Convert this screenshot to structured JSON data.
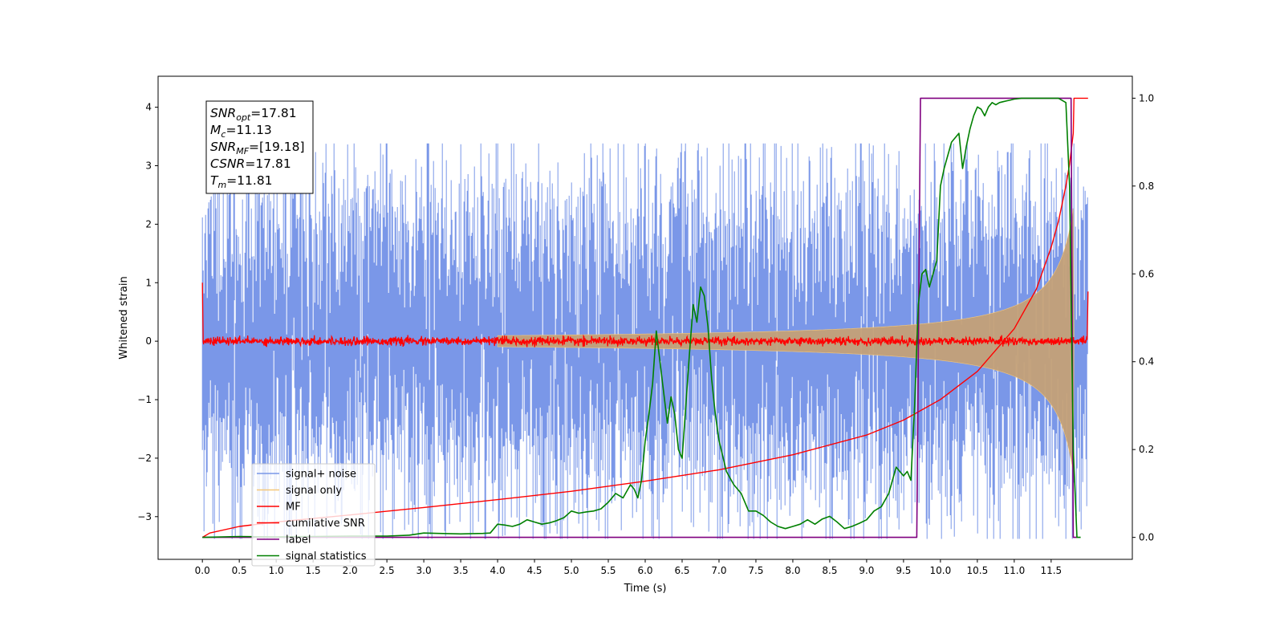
{
  "chart_data": {
    "type": "line",
    "xlabel": "Time (s)",
    "ylabel": "Whitened strain",
    "xlim": [
      -0.6,
      12.6
    ],
    "ylim": [
      -3.73,
      4.53
    ],
    "y2lim": [
      -0.05,
      1.05
    ],
    "x_ticks": [
      "0.0",
      "0.5",
      "1.0",
      "1.5",
      "2.0",
      "2.5",
      "3.0",
      "3.5",
      "4.0",
      "4.5",
      "5.0",
      "5.5",
      "6.0",
      "6.5",
      "7.0",
      "7.5",
      "8.0",
      "8.5",
      "9.0",
      "9.5",
      "10.0",
      "10.5",
      "11.0",
      "11.5"
    ],
    "y_ticks": [
      "−3",
      "−2",
      "−1",
      "0",
      "1",
      "2",
      "3",
      "4"
    ],
    "y2_ticks": [
      "0.0",
      "0.2",
      "0.4",
      "0.6",
      "0.8",
      "1.0"
    ],
    "legend_location": "lower-left",
    "annotation": {
      "snr_opt": {
        "base": "SNR",
        "sub": "opt",
        "value": "=17.81"
      },
      "mc": {
        "base": "M",
        "sub": "c",
        "value": "=11.13"
      },
      "snr_mf": {
        "base": "SNR",
        "sub": "MF",
        "value": "=[19.18]"
      },
      "csnr": {
        "base": "CSNR",
        "sub": "",
        "value": "=17.81"
      },
      "tm": {
        "base": "T",
        "sub": "m",
        "value": "=11.81"
      }
    },
    "series": [
      {
        "name": "signal+ noise",
        "color": "#7a97e8",
        "axis": "left",
        "kind": "noise",
        "t_start": 0.0,
        "t_end": 12.0,
        "noise_sigma": 0.8,
        "peak_abs": 3.38
      },
      {
        "name": "signal only",
        "color": "#f5c87a",
        "axis": "left",
        "kind": "chirp",
        "t_start": 0.0,
        "t_end": 11.81,
        "envelope_at_end": 2.5,
        "fill_color": "#c4a077"
      },
      {
        "name": "MF",
        "color": "#ff0000",
        "axis": "left",
        "kind": "mf",
        "t_start": 0.0,
        "t_end": 12.0,
        "start_value": 1.0,
        "noise_sigma": 0.035,
        "end_value": 0.85
      },
      {
        "name": "cumilative SNR",
        "color": "#ff0000",
        "axis": "right",
        "x": [
          0.0,
          0.1,
          0.5,
          1.0,
          2.0,
          3.0,
          4.0,
          5.0,
          6.0,
          7.0,
          8.0,
          9.0,
          9.5,
          10.0,
          10.5,
          11.0,
          11.3,
          11.5,
          11.6,
          11.7,
          11.75,
          11.8,
          11.81,
          11.85,
          12.0
        ],
        "y": [
          0.0,
          0.01,
          0.025,
          0.035,
          0.051,
          0.068,
          0.086,
          0.105,
          0.128,
          0.154,
          0.188,
          0.233,
          0.267,
          0.314,
          0.378,
          0.475,
          0.565,
          0.66,
          0.72,
          0.8,
          0.85,
          0.92,
          1.0,
          1.0,
          1.0
        ]
      },
      {
        "name": "label",
        "color": "#800080",
        "axis": "right",
        "x": [
          0.0,
          9.68,
          9.73,
          11.77,
          11.8,
          11.85
        ],
        "y": [
          0.0,
          0.0,
          1.0,
          1.0,
          0.0,
          0.0
        ]
      },
      {
        "name": "signal statistics",
        "color": "#008000",
        "axis": "right",
        "x": [
          0.0,
          0.5,
          1.0,
          1.5,
          2.0,
          2.5,
          2.8,
          3.0,
          3.2,
          3.5,
          3.8,
          3.9,
          4.0,
          4.1,
          4.2,
          4.3,
          4.4,
          4.5,
          4.6,
          4.7,
          4.8,
          4.9,
          5.0,
          5.1,
          5.2,
          5.3,
          5.4,
          5.5,
          5.6,
          5.7,
          5.8,
          5.85,
          5.9,
          5.95,
          6.0,
          6.05,
          6.1,
          6.15,
          6.2,
          6.25,
          6.3,
          6.35,
          6.4,
          6.45,
          6.5,
          6.55,
          6.6,
          6.65,
          6.7,
          6.75,
          6.8,
          6.85,
          6.9,
          6.95,
          7.0,
          7.1,
          7.2,
          7.3,
          7.4,
          7.5,
          7.6,
          7.7,
          7.8,
          7.9,
          8.0,
          8.1,
          8.2,
          8.3,
          8.4,
          8.5,
          8.6,
          8.7,
          8.8,
          8.9,
          9.0,
          9.1,
          9.2,
          9.3,
          9.4,
          9.5,
          9.55,
          9.6,
          9.65,
          9.7,
          9.75,
          9.8,
          9.85,
          9.9,
          9.95,
          10.0,
          10.05,
          10.1,
          10.15,
          10.2,
          10.25,
          10.3,
          10.35,
          10.4,
          10.45,
          10.5,
          10.55,
          10.6,
          10.65,
          10.7,
          10.75,
          10.8,
          10.85,
          10.9,
          10.95,
          11.0,
          11.1,
          11.2,
          11.3,
          11.4,
          11.5,
          11.6,
          11.7,
          11.75,
          11.8,
          11.85,
          11.9
        ],
        "y": [
          0.0,
          0.002,
          0.001,
          0.002,
          0.003,
          0.003,
          0.005,
          0.01,
          0.009,
          0.008,
          0.009,
          0.01,
          0.03,
          0.028,
          0.025,
          0.03,
          0.04,
          0.035,
          0.03,
          0.033,
          0.038,
          0.045,
          0.06,
          0.055,
          0.058,
          0.06,
          0.065,
          0.08,
          0.1,
          0.09,
          0.12,
          0.11,
          0.09,
          0.13,
          0.22,
          0.28,
          0.35,
          0.47,
          0.4,
          0.33,
          0.26,
          0.32,
          0.28,
          0.2,
          0.18,
          0.3,
          0.42,
          0.53,
          0.49,
          0.57,
          0.55,
          0.48,
          0.36,
          0.28,
          0.22,
          0.15,
          0.12,
          0.1,
          0.06,
          0.06,
          0.05,
          0.035,
          0.025,
          0.02,
          0.025,
          0.03,
          0.04,
          0.03,
          0.042,
          0.048,
          0.035,
          0.02,
          0.025,
          0.032,
          0.04,
          0.06,
          0.07,
          0.1,
          0.16,
          0.14,
          0.15,
          0.13,
          0.3,
          0.53,
          0.6,
          0.61,
          0.57,
          0.6,
          0.63,
          0.8,
          0.84,
          0.87,
          0.9,
          0.91,
          0.92,
          0.84,
          0.89,
          0.93,
          0.96,
          0.98,
          0.975,
          0.96,
          0.98,
          0.99,
          0.985,
          0.99,
          0.992,
          0.994,
          0.996,
          0.998,
          1.0,
          1.0,
          1.0,
          1.0,
          1.0,
          1.0,
          0.99,
          0.8,
          0.2,
          0.0,
          0.0
        ]
      }
    ]
  }
}
